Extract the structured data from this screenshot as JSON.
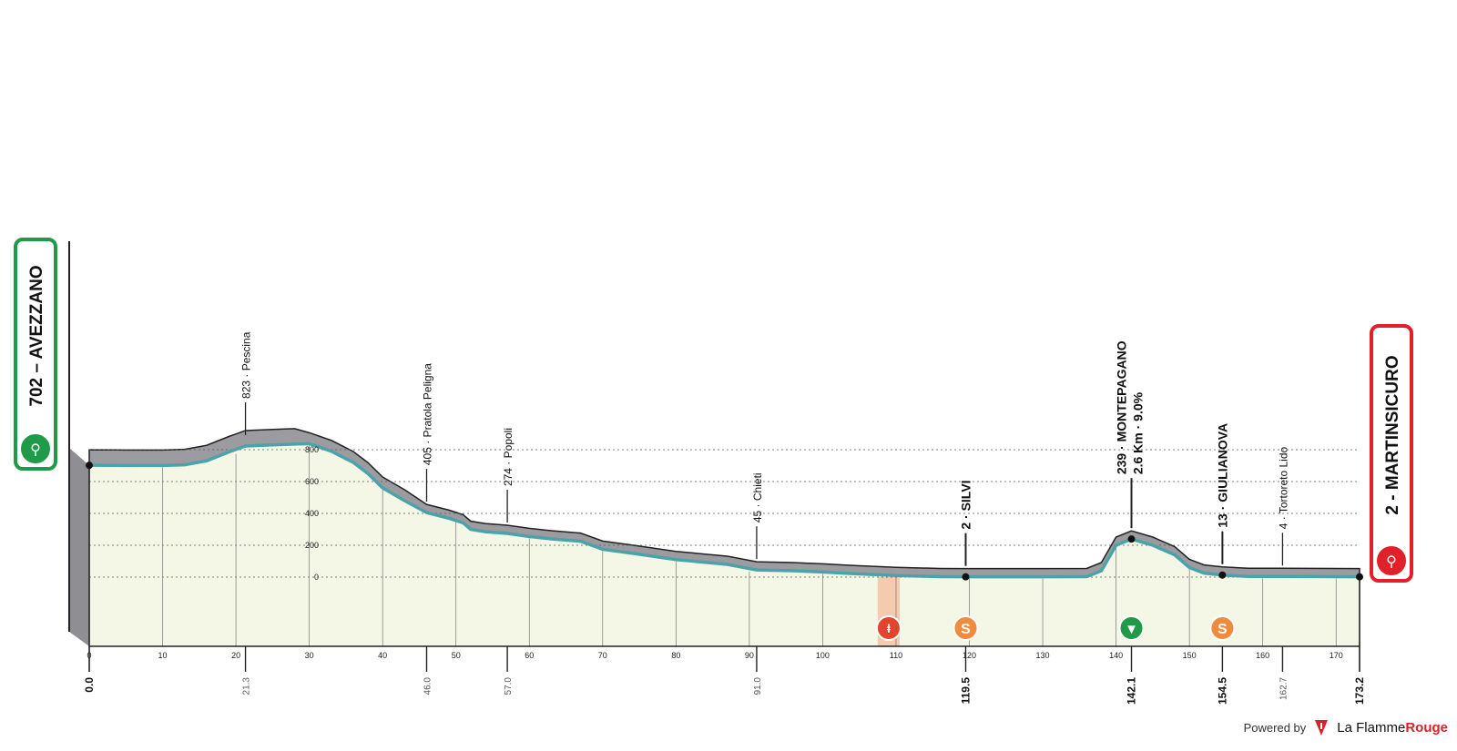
{
  "chart_data": {
    "type": "area",
    "title": "",
    "xlabel": "",
    "ylabel": "",
    "xlim": [
      0,
      173.2
    ],
    "ylim": [
      0,
      800
    ],
    "x_ticks": [
      0,
      10,
      20,
      30,
      40,
      50,
      60,
      70,
      80,
      90,
      100,
      110,
      120,
      130,
      140,
      150,
      160,
      170
    ],
    "y_ticks": [
      0,
      200,
      400,
      600,
      800
    ],
    "grid": true,
    "start": {
      "altitude": "702",
      "name": "AVEZZANO",
      "km": "0.0"
    },
    "finish": {
      "altitude": "2",
      "name": "MARTINSICURO",
      "km": "173.2"
    },
    "profile": [
      {
        "km": 0,
        "alt": 702
      },
      {
        "km": 5,
        "alt": 701
      },
      {
        "km": 10,
        "alt": 701
      },
      {
        "km": 13,
        "alt": 705
      },
      {
        "km": 16,
        "alt": 730
      },
      {
        "km": 19,
        "alt": 785
      },
      {
        "km": 21.3,
        "alt": 823
      },
      {
        "km": 25,
        "alt": 830
      },
      {
        "km": 28,
        "alt": 835
      },
      {
        "km": 30,
        "alt": 838
      },
      {
        "km": 33,
        "alt": 790
      },
      {
        "km": 36,
        "alt": 720
      },
      {
        "km": 38,
        "alt": 650
      },
      {
        "km": 40,
        "alt": 560
      },
      {
        "km": 43,
        "alt": 480
      },
      {
        "km": 46,
        "alt": 405
      },
      {
        "km": 49,
        "alt": 370
      },
      {
        "km": 51,
        "alt": 340
      },
      {
        "km": 52,
        "alt": 300
      },
      {
        "km": 54,
        "alt": 285
      },
      {
        "km": 57,
        "alt": 274
      },
      {
        "km": 60,
        "alt": 255
      },
      {
        "km": 63,
        "alt": 240
      },
      {
        "km": 67,
        "alt": 225
      },
      {
        "km": 70,
        "alt": 175
      },
      {
        "km": 74,
        "alt": 150
      },
      {
        "km": 80,
        "alt": 110
      },
      {
        "km": 87,
        "alt": 80
      },
      {
        "km": 91,
        "alt": 45
      },
      {
        "km": 96,
        "alt": 40
      },
      {
        "km": 100,
        "alt": 32
      },
      {
        "km": 104,
        "alt": 22
      },
      {
        "km": 110,
        "alt": 10
      },
      {
        "km": 116,
        "alt": 3
      },
      {
        "km": 119.5,
        "alt": 2
      },
      {
        "km": 122,
        "alt": 2
      },
      {
        "km": 130,
        "alt": 2
      },
      {
        "km": 136,
        "alt": 3
      },
      {
        "km": 138,
        "alt": 40
      },
      {
        "km": 140,
        "alt": 200
      },
      {
        "km": 142.1,
        "alt": 239
      },
      {
        "km": 145,
        "alt": 200
      },
      {
        "km": 148,
        "alt": 140
      },
      {
        "km": 150,
        "alt": 60
      },
      {
        "km": 152,
        "alt": 25
      },
      {
        "km": 154.5,
        "alt": 13
      },
      {
        "km": 158,
        "alt": 4
      },
      {
        "km": 162.7,
        "alt": 4
      },
      {
        "km": 170,
        "alt": 3
      },
      {
        "km": 173.2,
        "alt": 2
      }
    ],
    "places": [
      {
        "km": 21.3,
        "label": "823 · Pescina",
        "kind": "town"
      },
      {
        "km": 46.0,
        "label": "405 · Pratola Peligna",
        "kind": "town"
      },
      {
        "km": 57.0,
        "label": "274 · Popoli",
        "kind": "town"
      },
      {
        "km": 91.0,
        "label": "45 · Chieti",
        "kind": "town"
      },
      {
        "km": 119.5,
        "label": "2 · SILVI",
        "kind": "sprint"
      },
      {
        "km": 142.1,
        "label": "239 · MONTEPAGANO",
        "label2": "2.6 Km · 9.0%",
        "kind": "climb"
      },
      {
        "km": 154.5,
        "label": "13 · GIULIANOVA",
        "kind": "sprint"
      },
      {
        "km": 162.7,
        "label": "4 · Tortoreto Lido",
        "kind": "town"
      }
    ],
    "km_markers": [
      {
        "km": 0.0,
        "label": "0.0",
        "major": true
      },
      {
        "km": 21.3,
        "label": "21.3",
        "major": false
      },
      {
        "km": 46.0,
        "label": "46.0",
        "major": false
      },
      {
        "km": 57.0,
        "label": "57.0",
        "major": false
      },
      {
        "km": 91.0,
        "label": "91.0",
        "major": false
      },
      {
        "km": 119.5,
        "label": "119.5",
        "major": true
      },
      {
        "km": 142.1,
        "label": "142.1",
        "major": true
      },
      {
        "km": 154.5,
        "label": "154.5",
        "major": true
      },
      {
        "km": 162.7,
        "label": "162.7",
        "major": false
      },
      {
        "km": 173.2,
        "label": "173.2",
        "major": true
      }
    ],
    "feed_zone": {
      "km_start": 107.5,
      "km_end": 110.5,
      "icon": "feed-zone-icon"
    },
    "icons": [
      {
        "km": 119.5,
        "name": "sprint-icon",
        "glyph": "S",
        "color": "#f08a3c"
      },
      {
        "km": 142.1,
        "name": "kom-climb-icon",
        "glyph": "▼",
        "color": "#1f9a48"
      },
      {
        "km": 154.5,
        "name": "sprint-icon",
        "glyph": "S",
        "color": "#f08a3c"
      }
    ],
    "colors": {
      "fill": "#f4f6e6",
      "line": "#4aa3a8",
      "relief": "#9c9ca0",
      "start": "#1f9a48",
      "finish": "#e2202a"
    }
  },
  "footer": {
    "powered": "Powered by",
    "brand_a": "La Flamme",
    "brand_b": "Rouge"
  }
}
